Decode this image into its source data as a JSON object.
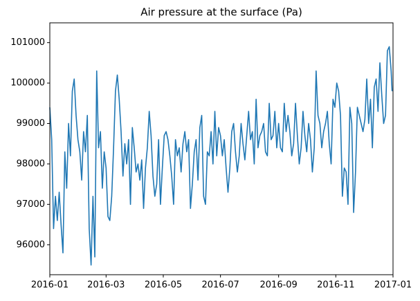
{
  "chart_data": {
    "type": "line",
    "title": "Air pressure at the surface (Pa)",
    "x": [
      0,
      2,
      4,
      6,
      8,
      10,
      12,
      14,
      16,
      18,
      20,
      22,
      24,
      26,
      28,
      30,
      32,
      34,
      36,
      38,
      40,
      42,
      44,
      46,
      48,
      50,
      52,
      54,
      56,
      58,
      60,
      62,
      64,
      66,
      68,
      70,
      72,
      74,
      76,
      78,
      80,
      82,
      84,
      86,
      88,
      90,
      92,
      94,
      96,
      98,
      100,
      102,
      104,
      106,
      108,
      110,
      112,
      114,
      116,
      118,
      120,
      122,
      124,
      126,
      128,
      130,
      132,
      134,
      136,
      138,
      140,
      142,
      144,
      146,
      148,
      150,
      152,
      154,
      156,
      158,
      160,
      162,
      164,
      166,
      168,
      170,
      172,
      174,
      176,
      178,
      180,
      182,
      184,
      186,
      188,
      190,
      192,
      194,
      196,
      198,
      200,
      202,
      204,
      206,
      208,
      210,
      212,
      214,
      216,
      218,
      220,
      222,
      224,
      226,
      228,
      230,
      232,
      234,
      236,
      238,
      240,
      242,
      244,
      246,
      248,
      250,
      252,
      254,
      256,
      258,
      260,
      262,
      264,
      266,
      268,
      270,
      272,
      274,
      276,
      278,
      280,
      282,
      284,
      286,
      288,
      290,
      292,
      294,
      296,
      298,
      300,
      302,
      304,
      306,
      308,
      310,
      312,
      314,
      316,
      318,
      320,
      322,
      324,
      326,
      328,
      330,
      332,
      334,
      336,
      338,
      340,
      342,
      344,
      346,
      348,
      350,
      352,
      354,
      356,
      358,
      360,
      362,
      364,
      365
    ],
    "values": [
      99400,
      98600,
      96400,
      97200,
      96600,
      97300,
      96500,
      95800,
      98300,
      97400,
      99000,
      98200,
      99800,
      100100,
      99200,
      98600,
      98300,
      97600,
      98800,
      98300,
      99200,
      96400,
      95500,
      97200,
      95700,
      100300,
      98400,
      98800,
      97400,
      98300,
      97900,
      96700,
      96600,
      97200,
      98400,
      99800,
      100200,
      99600,
      98800,
      97700,
      98500,
      98000,
      98600,
      97000,
      98900,
      98400,
      97800,
      98000,
      97600,
      98100,
      96900,
      97900,
      98400,
      99300,
      98700,
      97700,
      97200,
      97500,
      98600,
      97000,
      97900,
      98700,
      98800,
      98600,
      98200,
      97700,
      97000,
      98600,
      98200,
      98400,
      97800,
      98500,
      98800,
      98300,
      98600,
      96900,
      97500,
      98300,
      98600,
      97600,
      98900,
      99200,
      97200,
      97000,
      98300,
      98200,
      98800,
      98000,
      99300,
      98200,
      98900,
      98700,
      98200,
      98600,
      97900,
      97300,
      97900,
      98800,
      99000,
      98300,
      97800,
      98200,
      99000,
      98500,
      98100,
      98700,
      99300,
      98600,
      98800,
      98000,
      99600,
      98400,
      98700,
      98800,
      99000,
      98300,
      98200,
      99500,
      98600,
      98700,
      99300,
      98400,
      99000,
      98400,
      98300,
      99500,
      98800,
      99200,
      98800,
      98200,
      98500,
      99500,
      98700,
      98000,
      98400,
      99300,
      98700,
      98300,
      99000,
      98600,
      97800,
      98400,
      100300,
      99200,
      99000,
      98400,
      98800,
      99000,
      99300,
      98500,
      98000,
      99600,
      99400,
      100000,
      99800,
      99200,
      97200,
      97900,
      97800,
      97000,
      99400,
      99000,
      96800,
      97800,
      99400,
      99200,
      99000,
      98800,
      99100,
      100100,
      99000,
      99600,
      98400,
      99900,
      100100,
      99300,
      100500,
      99700,
      99000,
      99200,
      100800,
      100900,
      100300,
      99800
    ],
    "color": "#1f77b4",
    "xlim": [
      0,
      366
    ],
    "xticks": [
      {
        "value": 0,
        "label": "2016-01"
      },
      {
        "value": 60,
        "label": "2016-03"
      },
      {
        "value": 121,
        "label": "2016-05"
      },
      {
        "value": 182,
        "label": "2016-07"
      },
      {
        "value": 244,
        "label": "2016-09"
      },
      {
        "value": 305,
        "label": "2016-11"
      },
      {
        "value": 366,
        "label": "2017-01"
      }
    ],
    "ylim": [
      95260,
      101490
    ],
    "yticks": [
      96000,
      97000,
      98000,
      99000,
      100000,
      101000
    ],
    "grid": false
  }
}
